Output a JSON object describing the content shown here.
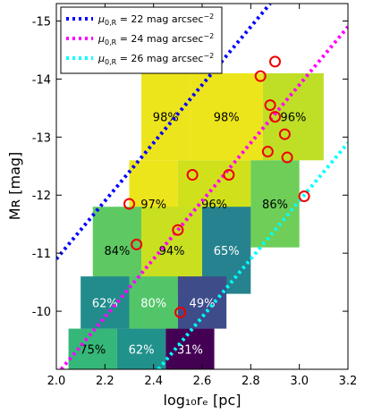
{
  "chart_data": {
    "type": "heatmap",
    "title": "",
    "xlabel": "log₁₀rₑ [pc]",
    "ylabel": "Mʀ [mag]",
    "xlim": [
      2.0,
      3.2
    ],
    "ylim": [
      -9.0,
      -15.3
    ],
    "y_inverted": true,
    "grid": false,
    "x_ticks": [
      2.0,
      2.2,
      2.4,
      2.6,
      2.8,
      3.0,
      3.2
    ],
    "x_tick_labels": [
      "2.0",
      "2.2",
      "2.4",
      "2.6",
      "2.8",
      "3.0",
      "3.2"
    ],
    "y_ticks": [
      -10,
      -11,
      -12,
      -13,
      -14,
      -15
    ],
    "y_tick_labels": [
      "-10",
      "-11",
      "-12",
      "-13",
      "-14",
      "-15"
    ],
    "cells": [
      {
        "x0": 2.55,
        "x1": 2.85,
        "y0": -12.6,
        "y1": -14.1,
        "color": "#ede51b",
        "label": "98%",
        "label_color": "#000000"
      },
      {
        "x0": 2.85,
        "x1": 3.1,
        "y0": -12.6,
        "y1": -14.1,
        "color": "#bedf26",
        "label": "96%",
        "label_color": "#000000"
      },
      {
        "x0": 2.35,
        "x1": 2.55,
        "y0": -12.6,
        "y1": -14.1,
        "color": "#ede51b",
        "label": "98%",
        "label_color": "#000000"
      },
      {
        "x0": 2.3,
        "x1": 2.5,
        "y0": -11.1,
        "y1": -12.6,
        "color": "#ede51b",
        "label": "97%",
        "label_color": "#000000"
      },
      {
        "x0": 2.5,
        "x1": 2.8,
        "y0": -11.1,
        "y1": -12.6,
        "color": "#d0e11c",
        "label": "96%",
        "label_color": "#000000"
      },
      {
        "x0": 2.8,
        "x1": 3.0,
        "y0": -11.1,
        "y1": -12.6,
        "color": "#6ece58",
        "label": "86%",
        "label_color": "#000000"
      },
      {
        "x0": 2.15,
        "x1": 2.35,
        "y0": -10.3,
        "y1": -11.8,
        "color": "#5ec962",
        "label": "84%",
        "label_color": "#000000"
      },
      {
        "x0": 2.35,
        "x1": 2.6,
        "y0": -10.3,
        "y1": -11.8,
        "color": "#c8e020",
        "label": "94%",
        "label_color": "#000000"
      },
      {
        "x0": 2.6,
        "x1": 2.8,
        "y0": -10.3,
        "y1": -11.8,
        "color": "#26828e",
        "label": "65%",
        "label_color": "#ffffff"
      },
      {
        "x0": 2.1,
        "x1": 2.3,
        "y0": -9.7,
        "y1": -10.6,
        "color": "#228c8d",
        "label": "62%",
        "label_color": "#ffffff"
      },
      {
        "x0": 2.3,
        "x1": 2.5,
        "y0": -9.7,
        "y1": -10.6,
        "color": "#52c569",
        "label": "80%",
        "label_color": "#ffffff"
      },
      {
        "x0": 2.5,
        "x1": 2.7,
        "y0": -9.7,
        "y1": -10.6,
        "color": "#3e4c8a",
        "label": "49%",
        "label_color": "#ffffff"
      },
      {
        "x0": 2.05,
        "x1": 2.25,
        "y0": -9.0,
        "y1": -9.7,
        "color": "#35b779",
        "label": "75%",
        "label_color": "#000000"
      },
      {
        "x0": 2.25,
        "x1": 2.45,
        "y0": -9.0,
        "y1": -9.7,
        "color": "#21918c",
        "label": "62%",
        "label_color": "#ffffff"
      },
      {
        "x0": 2.45,
        "x1": 2.65,
        "y0": -9.0,
        "y1": -9.7,
        "color": "#440154",
        "label": "31%",
        "label_color": "#ffffff"
      }
    ],
    "series": [
      {
        "name": "μ0,R = 22 mag arcsec⁻²",
        "color": "#0000ff",
        "style": "dotted",
        "points": [
          [
            2.0,
            -10.9
          ],
          [
            2.88,
            -15.3
          ]
        ]
      },
      {
        "name": "μ0,R = 24 mag arcsec⁻²",
        "color": "#ff00ff",
        "style": "dotted",
        "points": [
          [
            2.02,
            -9.0
          ],
          [
            3.2,
            -14.9
          ]
        ]
      },
      {
        "name": "μ0,R = 26 mag arcsec⁻²",
        "color": "#00ffff",
        "style": "dotted",
        "points": [
          [
            2.42,
            -9.0
          ],
          [
            3.2,
            -12.9
          ]
        ]
      }
    ],
    "legend": {
      "placement": "top-left",
      "entries": [
        {
          "mu": "μ",
          "sub": "0,R",
          "text": " = 22 mag arcsec",
          "sup": "−2",
          "color": "#0000ff"
        },
        {
          "mu": "μ",
          "sub": "0,R",
          "text": " = 24 mag arcsec",
          "sup": "−2",
          "color": "#ff00ff"
        },
        {
          "mu": "μ",
          "sub": "0,R",
          "text": " = 26 mag arcsec",
          "sup": "−2",
          "color": "#00ffff"
        }
      ]
    },
    "markers": {
      "type": "open-circle",
      "color": "#ee0000",
      "points": [
        [
          2.9,
          -14.3
        ],
        [
          2.84,
          -14.05
        ],
        [
          2.88,
          -13.55
        ],
        [
          2.9,
          -13.35
        ],
        [
          2.94,
          -13.05
        ],
        [
          2.87,
          -12.75
        ],
        [
          2.95,
          -12.65
        ],
        [
          2.3,
          -11.85
        ],
        [
          2.56,
          -12.35
        ],
        [
          2.71,
          -12.35
        ],
        [
          2.33,
          -11.15
        ],
        [
          2.5,
          -11.4
        ],
        [
          3.02,
          -11.98
        ],
        [
          2.51,
          -9.98
        ]
      ]
    }
  }
}
